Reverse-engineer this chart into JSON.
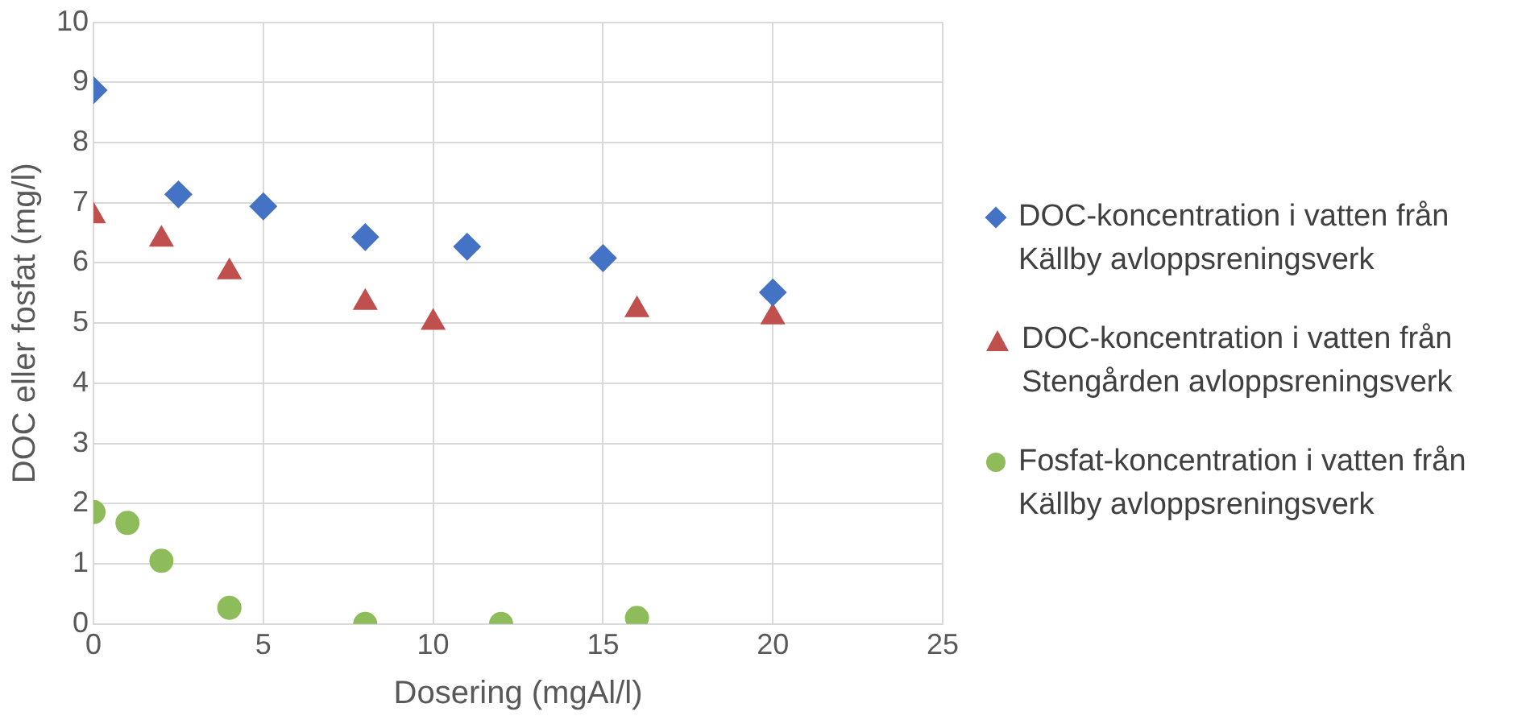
{
  "chart_data": {
    "type": "scatter",
    "xlabel": "Dosering (mgAl/l)",
    "ylabel": "DOC eller fosfat (mg/l)",
    "xlim": [
      0,
      25
    ],
    "xticks": [
      0,
      5,
      10,
      15,
      20,
      25
    ],
    "ylim": [
      0,
      10
    ],
    "yticks": [
      0,
      1,
      2,
      3,
      4,
      5,
      6,
      7,
      8,
      9,
      10
    ],
    "grid": true,
    "legend": "right",
    "series": [
      {
        "name": "DOC-koncentration i vatten från Källby avloppsreningsverk",
        "color": "#4472c4",
        "marker": "diamond",
        "x": [
          0,
          2.5,
          5,
          8,
          11,
          15,
          20
        ],
        "values": [
          8.87,
          7.14,
          6.94,
          6.43,
          6.27,
          6.08,
          5.51
        ]
      },
      {
        "name": "DOC-koncentration i vatten från Stengården avloppsreningsverk",
        "color": "#c0504d",
        "marker": "triangle",
        "x": [
          0,
          2,
          4,
          8,
          10,
          16,
          20
        ],
        "values": [
          6.78,
          6.39,
          5.85,
          5.34,
          5.01,
          5.22,
          5.1
        ]
      },
      {
        "name": "Fosfat-koncentration i vatten från Källby avloppsreningsverk",
        "color": "#8fbc5a",
        "marker": "circle",
        "x": [
          0,
          1,
          2,
          4,
          8,
          12,
          16
        ],
        "values": [
          1.86,
          1.68,
          1.05,
          0.27,
          0,
          0,
          0.1
        ]
      }
    ]
  }
}
